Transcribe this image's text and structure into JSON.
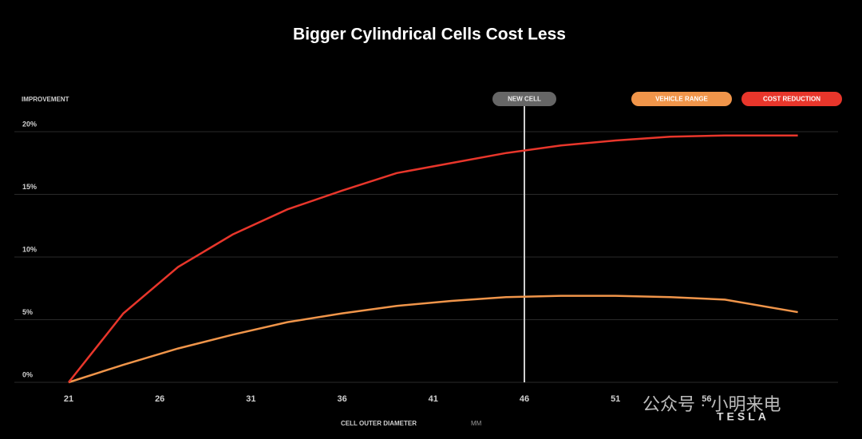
{
  "chart_data": {
    "type": "line",
    "title": "Bigger Cylindrical Cells Cost Less",
    "y_label": "IMPROVEMENT",
    "x_label": "CELL OUTER DIAMETER",
    "x_unit": "MM",
    "marker_label": "NEW CELL",
    "marker_x": 46,
    "marker_color": "#cfcfcf",
    "x": [
      21,
      24,
      27,
      30,
      33,
      36,
      39,
      42,
      45,
      48,
      51,
      54,
      57,
      61
    ],
    "series": [
      {
        "name": "VEHICLE RANGE",
        "color": "#f0954a",
        "values": [
          0,
          1.4,
          2.7,
          3.8,
          4.8,
          5.5,
          6.1,
          6.5,
          6.8,
          6.9,
          6.9,
          6.8,
          6.6,
          5.6
        ]
      },
      {
        "name": "COST REDUCTION",
        "color": "#e8362b",
        "values": [
          0,
          5.5,
          9.2,
          11.8,
          13.8,
          15.3,
          16.7,
          17.5,
          18.3,
          18.9,
          19.3,
          19.6,
          19.7,
          19.7
        ]
      }
    ],
    "xlim": [
      21,
      61
    ],
    "xticks": [
      21,
      26,
      31,
      36,
      41,
      46,
      51,
      56
    ],
    "ylim": [
      0,
      20
    ],
    "yticks": [
      {
        "value": 0,
        "label": "0%"
      },
      {
        "value": 5,
        "label": "5%"
      },
      {
        "value": 10,
        "label": "10%"
      },
      {
        "value": 15,
        "label": "15%"
      },
      {
        "value": 20,
        "label": "20%"
      }
    ],
    "grid": true,
    "legend": "top-right",
    "watermark": "公众号 · 小明来电",
    "logo": "TESLA"
  }
}
